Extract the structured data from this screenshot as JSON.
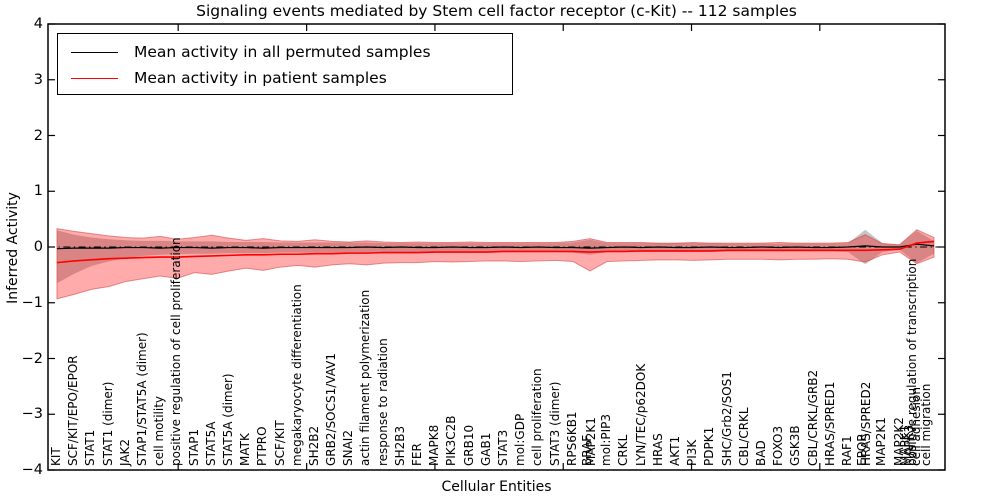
{
  "legend": {
    "items": [
      {
        "label": "Mean activity in all permuted samples",
        "color": "#000000"
      },
      {
        "label": "Mean activity in patient samples",
        "color": "#ff0000"
      }
    ]
  },
  "chart_data": {
    "type": "line",
    "title": "Signaling events mediated by Stem cell factor receptor (c-Kit) -- 112 samples",
    "xlabel": "Cellular Entities",
    "ylabel": "Inferred Activity",
    "ylim": [
      -4,
      4
    ],
    "xlim": [
      -0.52,
      51.64
    ],
    "grid": false,
    "legend_position": "upper left",
    "yticks": [
      {
        "v": 4,
        "label": "4"
      },
      {
        "v": 3,
        "label": "3"
      },
      {
        "v": 2,
        "label": "2"
      },
      {
        "v": 1,
        "label": "1"
      },
      {
        "v": 0,
        "label": "0"
      },
      {
        "v": -1,
        "label": "−1"
      },
      {
        "v": -2,
        "label": "−2"
      },
      {
        "v": -3,
        "label": "−3"
      },
      {
        "v": -4,
        "label": "−4"
      }
    ],
    "xticks": [
      7.05,
      14.52,
      21.98,
      29.44,
      36.9,
      44.36
    ],
    "zero_line": {
      "y": 0,
      "style": "dashdot",
      "color": "#000000"
    },
    "entities": [
      [
        0,
        "KIT"
      ],
      [
        1,
        "SCF/KIT/EPO/EPOR"
      ],
      [
        2,
        "STAT1"
      ],
      [
        3,
        "STAT1 (dimer)"
      ],
      [
        4,
        "JAK2"
      ],
      [
        5,
        "STAP1/STAT5A (dimer)"
      ],
      [
        6,
        "cell motility"
      ],
      [
        7,
        "positive regulation of cell proliferation"
      ],
      [
        8,
        "STAP1"
      ],
      [
        9,
        "STAT5A"
      ],
      [
        10,
        "STAT5A (dimer)"
      ],
      [
        11,
        "MATK"
      ],
      [
        12,
        "PTPRO"
      ],
      [
        13,
        "SCF/KIT"
      ],
      [
        14,
        "megakaryocyte differentiation"
      ],
      [
        15,
        "SH2B2"
      ],
      [
        16,
        "GRB2/SOCS1/VAV1"
      ],
      [
        17,
        "SNAI2"
      ],
      [
        18,
        "actin filament polymerization"
      ],
      [
        19,
        "response to radiation"
      ],
      [
        20,
        "SH2B3"
      ],
      [
        21,
        "FER"
      ],
      [
        22,
        "MAPK8"
      ],
      [
        23,
        "PIK3C2B"
      ],
      [
        24,
        "GRB10"
      ],
      [
        25,
        "GAB1"
      ],
      [
        26,
        "STAT3"
      ],
      [
        27,
        "mol:GDP"
      ],
      [
        28,
        "cell proliferation"
      ],
      [
        29,
        "STAT3 (dimer)"
      ],
      [
        30,
        "RPS6KB1"
      ],
      [
        30.88,
        "BRAF"
      ],
      [
        31.12,
        "MAP2K1"
      ],
      [
        32,
        "mol:PIP3"
      ],
      [
        33,
        "CRKL"
      ],
      [
        34,
        "LYN/TEC/p62DOK"
      ],
      [
        35,
        "HRAS"
      ],
      [
        36,
        "AKT1"
      ],
      [
        37,
        "PI3K"
      ],
      [
        38,
        "PDPK1"
      ],
      [
        39,
        "SHC/Grb2/SOS1"
      ],
      [
        40,
        "CBL/CRKL"
      ],
      [
        41,
        "BAD"
      ],
      [
        42,
        "FOXO3"
      ],
      [
        43,
        "GSK3B"
      ],
      [
        44,
        "CBL/CRKL/GRB2"
      ],
      [
        45,
        "HRAS/SPRED1"
      ],
      [
        46,
        "RAF1"
      ],
      [
        46.88,
        "EPOR"
      ],
      [
        47.12,
        "HRAS/SPRED2"
      ],
      [
        48,
        "MAP2K1"
      ],
      [
        49,
        "MAP2K2"
      ],
      [
        49.4,
        "MAPK1"
      ],
      [
        49.6,
        "MAPK3"
      ],
      [
        49.8,
        "positive regulation of transcription"
      ],
      [
        50.0,
        "cell adhesion"
      ],
      [
        50.6,
        "cell migration"
      ]
    ],
    "series": {
      "black_mean": [
        -0.03,
        -0.02,
        -0.02,
        -0.02,
        -0.01,
        -0.01,
        -0.02,
        -0.01,
        -0.01,
        -0.02,
        -0.01,
        -0.01,
        -0.02,
        -0.01,
        -0.01,
        -0.01,
        -0.01,
        -0.01,
        0,
        -0.01,
        0,
        -0.01,
        -0.01,
        0,
        -0.01,
        -0.01,
        0,
        -0.01,
        0,
        -0.01,
        -0.01,
        -0.02,
        -0.01,
        0,
        -0.01,
        0,
        -0.01,
        -0.01,
        0,
        -0.01,
        -0.01,
        0,
        -0.01,
        0,
        -0.01,
        -0.01,
        0,
        0.02,
        0,
        0,
        0.05,
        0.02
      ],
      "red_mean": [
        -0.28,
        -0.25,
        -0.23,
        -0.21,
        -0.2,
        -0.19,
        -0.18,
        -0.18,
        -0.17,
        -0.16,
        -0.15,
        -0.14,
        -0.14,
        -0.13,
        -0.13,
        -0.12,
        -0.12,
        -0.11,
        -0.11,
        -0.1,
        -0.1,
        -0.1,
        -0.09,
        -0.09,
        -0.09,
        -0.09,
        -0.08,
        -0.08,
        -0.08,
        -0.08,
        -0.08,
        -0.09,
        -0.08,
        -0.08,
        -0.07,
        -0.07,
        -0.07,
        -0.07,
        -0.07,
        -0.06,
        -0.06,
        -0.06,
        -0.06,
        -0.06,
        -0.06,
        -0.06,
        -0.06,
        -0.06,
        -0.05,
        -0.04,
        0.07,
        0.1
      ],
      "red_upper": [
        0.33,
        0.28,
        0.24,
        0.2,
        0.17,
        0.16,
        0.19,
        0.14,
        0.17,
        0.21,
        0.16,
        0.12,
        0.15,
        0.11,
        0.1,
        0.13,
        0.1,
        0.09,
        0.11,
        0.09,
        0.08,
        0.09,
        0.08,
        0.08,
        0.09,
        0.08,
        0.08,
        0.08,
        0.08,
        0.08,
        0.1,
        0.15,
        0.08,
        0.08,
        0.08,
        0.07,
        0.07,
        0.08,
        0.07,
        0.07,
        0.07,
        0.07,
        0.08,
        0.07,
        0.07,
        0.07,
        0.08,
        0.22,
        0.06,
        0.04,
        0.31,
        0.17
      ],
      "red_lower": [
        -0.93,
        -0.85,
        -0.76,
        -0.71,
        -0.62,
        -0.57,
        -0.52,
        -0.56,
        -0.46,
        -0.49,
        -0.43,
        -0.38,
        -0.42,
        -0.36,
        -0.33,
        -0.36,
        -0.32,
        -0.3,
        -0.32,
        -0.29,
        -0.28,
        -0.28,
        -0.26,
        -0.27,
        -0.26,
        -0.25,
        -0.25,
        -0.26,
        -0.25,
        -0.24,
        -0.26,
        -0.43,
        -0.26,
        -0.25,
        -0.24,
        -0.23,
        -0.23,
        -0.24,
        -0.23,
        -0.22,
        -0.22,
        -0.22,
        -0.23,
        -0.22,
        -0.22,
        -0.21,
        -0.22,
        -0.27,
        -0.14,
        -0.09,
        -0.3,
        -0.18
      ],
      "gray_upper": [
        0.3,
        0.22,
        0.17,
        0.14,
        0.12,
        0.11,
        0.11,
        0.1,
        0.1,
        0.1,
        0.09,
        0.09,
        0.09,
        0.08,
        0.08,
        0.08,
        0.08,
        0.08,
        0.08,
        0.07,
        0.07,
        0.07,
        0.07,
        0.07,
        0.07,
        0.07,
        0.07,
        0.07,
        0.07,
        0.07,
        0.08,
        0.13,
        0.07,
        0.07,
        0.07,
        0.07,
        0.07,
        0.07,
        0.07,
        0.06,
        0.06,
        0.06,
        0.06,
        0.06,
        0.06,
        0.06,
        0.07,
        0.31,
        0.07,
        0.04,
        0.29,
        0.11
      ],
      "gray_lower": [
        -0.65,
        -0.48,
        -0.34,
        -0.26,
        -0.2,
        -0.16,
        -0.14,
        -0.13,
        -0.12,
        -0.12,
        -0.11,
        -0.11,
        -0.11,
        -0.1,
        -0.1,
        -0.1,
        -0.1,
        -0.1,
        -0.1,
        -0.09,
        -0.09,
        -0.09,
        -0.09,
        -0.09,
        -0.09,
        -0.09,
        -0.09,
        -0.09,
        -0.09,
        -0.09,
        -0.1,
        -0.14,
        -0.09,
        -0.09,
        -0.09,
        -0.09,
        -0.09,
        -0.09,
        -0.09,
        -0.08,
        -0.08,
        -0.08,
        -0.08,
        -0.08,
        -0.08,
        -0.08,
        -0.09,
        -0.31,
        -0.09,
        -0.05,
        -0.29,
        -0.12
      ]
    },
    "colors": {
      "patient_line": "#ff0000",
      "permuted_line": "#000000",
      "patient_band": "rgba(255,0,0,0.33)",
      "patient_band_edge": "rgba(205,60,60,0.55)",
      "permuted_band": "rgba(120,120,120,0.42)",
      "axes": "#000000"
    }
  }
}
